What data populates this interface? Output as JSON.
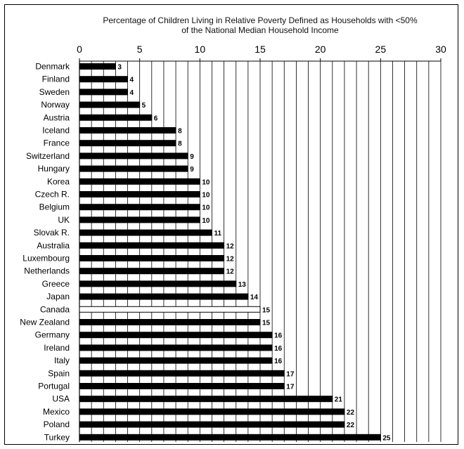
{
  "chart_data": {
    "type": "bar",
    "orientation": "horizontal",
    "title": "Percentage of Children Living in Relative Poverty Defined as Households with <50% of the National Median Household Income",
    "title_lines": [
      "Percentage of Children Living in Relative Poverty Defined as Households with <50%",
      "of the National Median Household Income"
    ],
    "xlabel": "",
    "ylabel": "",
    "xlim": [
      0,
      30
    ],
    "x_ticks": [
      0,
      5,
      10,
      15,
      20,
      25,
      30
    ],
    "x_tick_labels": [
      "0",
      "5",
      "10",
      "15",
      "20",
      "25",
      "30"
    ],
    "minor_gridline_step": 1,
    "grid": true,
    "legend": "none",
    "categories": [
      "Denmark",
      "Finland",
      "Sweden",
      "Norway",
      "Austria",
      "Iceland",
      "France",
      "Switzerland",
      "Hungary",
      "Korea",
      "Czech R.",
      "Belgium",
      "UK",
      "Slovak R.",
      "Australia",
      "Luxembourg",
      "Netherlands",
      "Greece",
      "Japan",
      "Canada",
      "New Zealand",
      "Germany",
      "Ireland",
      "Italy",
      "Spain",
      "Portugal",
      "USA",
      "Mexico",
      "Poland",
      "Turkey"
    ],
    "values": [
      3,
      4,
      4,
      5,
      6,
      8,
      8,
      9,
      9,
      10,
      10,
      10,
      10,
      11,
      12,
      12,
      12,
      13,
      14,
      15,
      15,
      16,
      16,
      16,
      17,
      17,
      21,
      22,
      22,
      25
    ],
    "value_labels": [
      "3",
      "4",
      "4",
      "5",
      "6",
      "8",
      "8",
      "9",
      "9",
      "10",
      "10",
      "10",
      "10",
      "11",
      "12",
      "12",
      "12",
      "13",
      "14",
      "15",
      "15",
      "16",
      "16",
      "16",
      "17",
      "17",
      "21",
      "22",
      "22",
      "25"
    ],
    "highlight_category": "Canada",
    "colors": {
      "bar": "#000000",
      "highlight_bar": "#ffffff",
      "gridline": "#000000"
    }
  }
}
